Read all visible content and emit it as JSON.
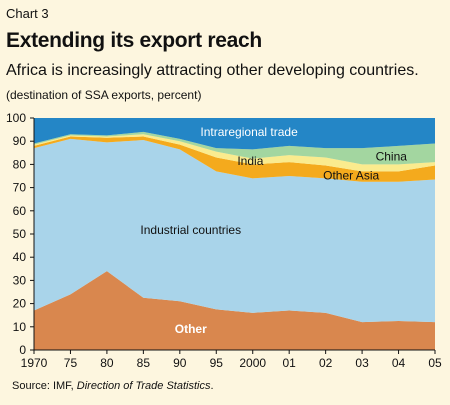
{
  "header": {
    "chart_label": "Chart 3",
    "title": "Extending its export reach",
    "subtitle": "Africa is increasingly attracting other developing countries.",
    "note": "(destination of SSA exports, percent)"
  },
  "source": {
    "prefix": "Source: IMF, ",
    "title": "Direction of Trade Statistics",
    "suffix": "."
  },
  "chart_data": {
    "type": "area",
    "stacked": true,
    "categories": [
      "1970",
      "75",
      "80",
      "85",
      "90",
      "95",
      "2000",
      "01",
      "02",
      "03",
      "04",
      "05"
    ],
    "ylim": [
      0,
      100
    ],
    "yticks": [
      0,
      10,
      20,
      30,
      40,
      50,
      60,
      70,
      80,
      90,
      100
    ],
    "grid": false,
    "series": [
      {
        "name": "Other",
        "color": "#d9874e",
        "label_color": "#ffffff",
        "values": [
          17,
          24,
          34,
          22.5,
          21,
          17.5,
          16,
          17,
          16,
          12,
          12.5,
          12
        ]
      },
      {
        "name": "Industrial countries",
        "color": "#a9d4ea",
        "label_color": "#111111",
        "values": [
          70,
          67,
          55.5,
          68,
          65.5,
          59.5,
          58,
          58,
          58,
          60.5,
          60,
          61.5
        ]
      },
      {
        "name": "Other Asia",
        "color": "#f4aa1d",
        "label_color": "#111111",
        "values": [
          1,
          1,
          2,
          1.5,
          2,
          6,
          6,
          6,
          5.5,
          4.5,
          4.5,
          6
        ]
      },
      {
        "name": "India",
        "color": "#faeb8e",
        "label_color": "#111111",
        "values": [
          0.5,
          0.5,
          0.5,
          1,
          1.5,
          2.5,
          2.5,
          3,
          3.5,
          3,
          3,
          1.5
        ]
      },
      {
        "name": "China",
        "color": "#a3d6a0",
        "label_color": "#111111",
        "values": [
          0.5,
          0.5,
          0.5,
          1,
          1,
          1.5,
          4,
          4,
          4,
          7,
          8,
          8
        ]
      },
      {
        "name": "Intraregional trade",
        "color": "#2486c6",
        "label_color": "#ffffff",
        "values": [
          11,
          7,
          7.5,
          6,
          9,
          13,
          13.5,
          12,
          13,
          13,
          12,
          11
        ]
      }
    ]
  }
}
